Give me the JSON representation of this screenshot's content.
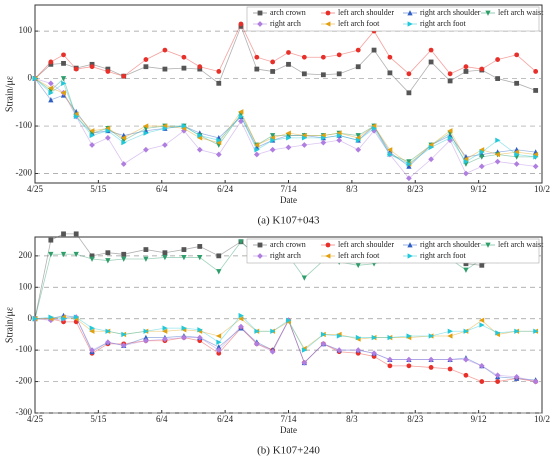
{
  "chart_data": [
    {
      "type": "line",
      "caption": "(a) K107+043",
      "x_label": "Date",
      "y_label": "Strain/με",
      "x": [
        "4/25",
        "4/30",
        "5/4",
        "5/8",
        "5/13",
        "5/18",
        "5/23",
        "5/30",
        "6/5",
        "6/11",
        "6/16",
        "6/22",
        "6/29",
        "7/4",
        "7/9",
        "7/14",
        "7/19",
        "7/25",
        "7/30",
        "8/5",
        "8/10",
        "8/15",
        "8/21",
        "8/28",
        "9/3",
        "9/8",
        "9/13",
        "9/18",
        "9/24",
        "9/30"
      ],
      "xlim": [
        "4/25",
        "10/2"
      ],
      "xticks": [
        "4/25",
        "5/15",
        "6/4",
        "6/24",
        "7/14",
        "8/3",
        "8/23",
        "9/12",
        "10/2"
      ],
      "ylim": [
        -220,
        155
      ],
      "yticks": [
        -200,
        -100,
        0,
        100
      ],
      "grid": true,
      "legend": "upper right",
      "series": [
        {
          "name": "arch crown",
          "color": "#555555",
          "marker": "square",
          "values": [
            0,
            30,
            32,
            22,
            30,
            20,
            5,
            25,
            20,
            22,
            20,
            -10,
            110,
            20,
            15,
            30,
            10,
            8,
            10,
            25,
            60,
            12,
            -30,
            35,
            -5,
            15,
            18,
            0,
            -10,
            -25
          ]
        },
        {
          "name": "left arch shoulder",
          "color": "#e8302a",
          "marker": "circle",
          "values": [
            0,
            35,
            50,
            20,
            25,
            15,
            5,
            40,
            60,
            45,
            25,
            15,
            115,
            45,
            35,
            55,
            45,
            45,
            50,
            60,
            100,
            45,
            10,
            60,
            10,
            25,
            20,
            40,
            50,
            15
          ]
        },
        {
          "name": "right arch shoulder",
          "color": "#2f5fc4",
          "marker": "triangle-up",
          "values": [
            0,
            -45,
            -35,
            -70,
            -115,
            -110,
            -120,
            -110,
            -105,
            -100,
            -115,
            -125,
            -80,
            -145,
            -130,
            -120,
            -120,
            -125,
            -120,
            -130,
            -100,
            -155,
            -185,
            -140,
            -120,
            -165,
            -160,
            -155,
            -150,
            -155
          ]
        },
        {
          "name": "left arch waist",
          "color": "#2e9e6a",
          "marker": "triangle-down",
          "values": [
            0,
            -25,
            0,
            -80,
            -115,
            -105,
            -130,
            -105,
            -100,
            -100,
            -120,
            -140,
            -75,
            -140,
            -120,
            -120,
            -120,
            -120,
            -115,
            -120,
            -100,
            -160,
            -175,
            -140,
            -115,
            -180,
            -165,
            -160,
            -165,
            -165
          ]
        },
        {
          "name": "right arch",
          "color": "#b07ee0",
          "marker": "diamond",
          "values": [
            0,
            -10,
            -30,
            -80,
            -140,
            -125,
            -180,
            -150,
            -140,
            -110,
            -150,
            -160,
            -90,
            -160,
            -150,
            -145,
            -140,
            -135,
            -130,
            -150,
            -110,
            -160,
            -210,
            -170,
            -130,
            -200,
            -185,
            -175,
            -180,
            -185
          ]
        },
        {
          "name": "left arch foot",
          "color": "#e0a010",
          "marker": "triangle-left",
          "values": [
            0,
            -20,
            -30,
            -75,
            -110,
            -105,
            -125,
            -100,
            -100,
            -105,
            -125,
            -135,
            -70,
            -140,
            -125,
            -115,
            -120,
            -120,
            -115,
            -125,
            -100,
            -150,
            -180,
            -140,
            -110,
            -170,
            -150,
            -160,
            -155,
            -160
          ]
        },
        {
          "name": "right arch foot",
          "color": "#22c8d8",
          "marker": "triangle-right",
          "values": [
            0,
            -30,
            -10,
            -80,
            -120,
            -110,
            -135,
            -115,
            -105,
            -100,
            -120,
            -130,
            -80,
            -150,
            -130,
            -125,
            -125,
            -125,
            -120,
            -130,
            -105,
            -160,
            -180,
            -145,
            -125,
            -175,
            -155,
            -130,
            -160,
            -165
          ]
        }
      ]
    },
    {
      "type": "line",
      "caption": "(b) K107+240",
      "x_label": "Date",
      "y_label": "Strain/με",
      "x": [
        "4/25",
        "4/30",
        "5/4",
        "5/8",
        "5/13",
        "5/18",
        "5/23",
        "5/30",
        "6/5",
        "6/11",
        "6/16",
        "6/22",
        "6/29",
        "7/4",
        "7/9",
        "7/14",
        "7/19",
        "7/25",
        "7/30",
        "8/5",
        "8/10",
        "8/15",
        "8/21",
        "8/28",
        "9/3",
        "9/8",
        "9/13",
        "9/18",
        "9/24",
        "9/30"
      ],
      "xlim": [
        "4/25",
        "10/2"
      ],
      "xticks": [
        "4/25",
        "5/15",
        "6/4",
        "6/24",
        "7/14",
        "8/3",
        "8/23",
        "9/12",
        "10/2"
      ],
      "ylim": [
        -300,
        260
      ],
      "yticks": [
        -300,
        -200,
        -100,
        0,
        100,
        200
      ],
      "grid": true,
      "legend": "upper right",
      "series": [
        {
          "name": "arch crown",
          "color": "#555555",
          "marker": "square",
          "values": [
            0,
            250,
            270,
            270,
            200,
            210,
            205,
            220,
            210,
            220,
            230,
            200,
            245,
            200,
            190,
            235,
            200,
            185,
            200,
            200,
            205,
            190,
            190,
            195,
            190,
            175,
            170,
            200,
            205,
            200
          ]
        },
        {
          "name": "left arch shoulder",
          "color": "#e8302a",
          "marker": "circle",
          "values": [
            0,
            0,
            -10,
            -10,
            -110,
            -80,
            -80,
            -70,
            -70,
            -60,
            -70,
            -110,
            -30,
            -80,
            -100,
            -5,
            -140,
            -80,
            -105,
            -110,
            -120,
            -150,
            -150,
            -155,
            -160,
            -180,
            -200,
            -200,
            -190,
            -200
          ]
        },
        {
          "name": "right arch shoulder",
          "color": "#2f5fc4",
          "marker": "triangle-up",
          "values": [
            0,
            0,
            10,
            5,
            -105,
            -75,
            -85,
            -60,
            -60,
            -55,
            -60,
            -90,
            -30,
            -75,
            -100,
            -5,
            -140,
            -80,
            -100,
            -100,
            -110,
            -130,
            -130,
            -130,
            -130,
            -125,
            -150,
            -185,
            -190,
            -195
          ]
        },
        {
          "name": "left arch waist",
          "color": "#2e9e6a",
          "marker": "triangle-down",
          "values": [
            0,
            205,
            205,
            205,
            190,
            185,
            190,
            190,
            195,
            195,
            195,
            150,
            245,
            200,
            195,
            200,
            130,
            185,
            180,
            170,
            175,
            185,
            190,
            190,
            190,
            155,
            190,
            185,
            195,
            190
          ]
        },
        {
          "name": "right arch",
          "color": "#b07ee0",
          "marker": "diamond",
          "values": [
            0,
            -5,
            0,
            5,
            -100,
            -75,
            -85,
            -70,
            -65,
            -60,
            -60,
            -100,
            -25,
            -80,
            -105,
            -5,
            -140,
            -80,
            -100,
            -100,
            -110,
            -130,
            -130,
            -130,
            -130,
            -130,
            -150,
            -180,
            -185,
            -200
          ]
        },
        {
          "name": "left arch foot",
          "color": "#e0a010",
          "marker": "triangle-left",
          "values": [
            0,
            0,
            5,
            0,
            -40,
            -40,
            -50,
            -40,
            -40,
            -35,
            -40,
            -55,
            0,
            -40,
            -40,
            -10,
            -95,
            -50,
            -50,
            -65,
            -60,
            -60,
            -60,
            -55,
            -55,
            -40,
            -5,
            -50,
            -40,
            -40
          ]
        },
        {
          "name": "right arch foot",
          "color": "#22c8d8",
          "marker": "triangle-right",
          "values": [
            0,
            5,
            0,
            5,
            -30,
            -40,
            -50,
            -40,
            -30,
            -30,
            -35,
            -75,
            10,
            -40,
            -40,
            -5,
            -100,
            -50,
            -55,
            -60,
            -60,
            -60,
            -55,
            -55,
            -40,
            -40,
            -20,
            -45,
            -40,
            -40
          ]
        }
      ]
    }
  ]
}
